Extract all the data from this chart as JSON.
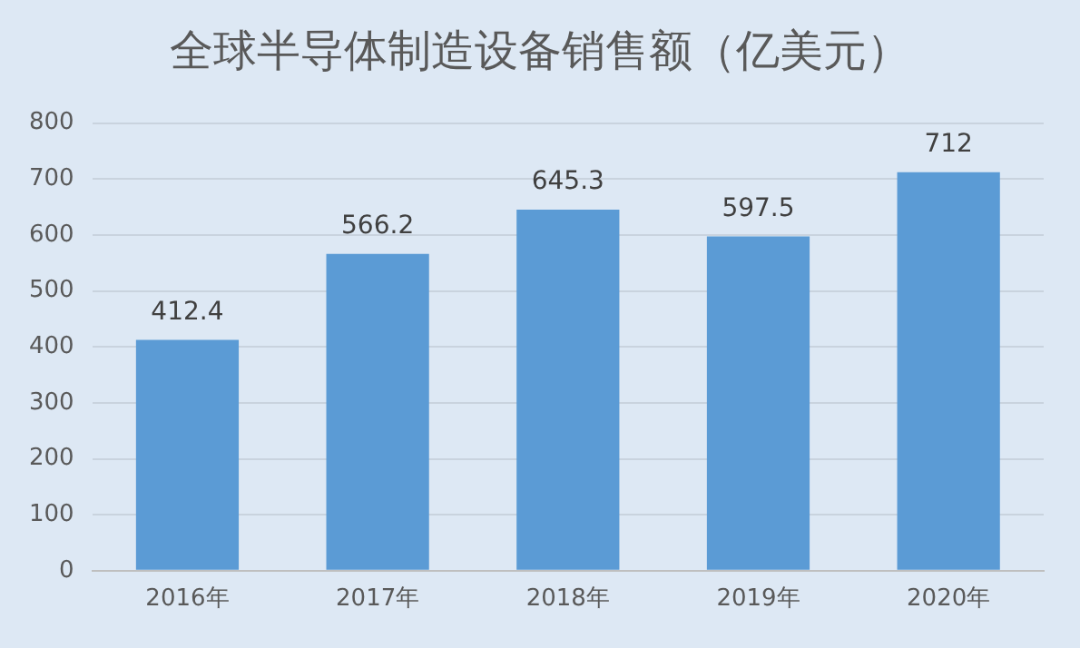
{
  "chart_data": {
    "type": "bar",
    "title": "全球半导体制造设备销售额（亿美元）",
    "categories": [
      "2016年",
      "2017年",
      "2018年",
      "2019年",
      "2020年"
    ],
    "values": [
      412.4,
      566.2,
      645.3,
      597.5,
      712
    ],
    "color": "#5b9bd5",
    "ylim": [
      0,
      800
    ],
    "yticks": [
      0,
      100,
      200,
      300,
      400,
      500,
      600,
      700,
      800
    ],
    "grid": "y",
    "legend": false,
    "data_labels": true
  }
}
